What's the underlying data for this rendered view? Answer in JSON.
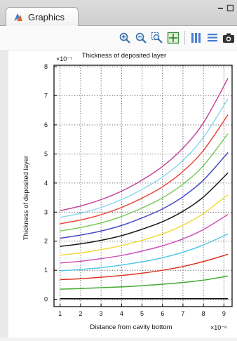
{
  "window": {
    "tab_label": "Graphics",
    "controls": [
      "minimize-icon",
      "maximize-icon"
    ]
  },
  "toolbar": {
    "buttons": [
      {
        "name": "zoom-in-icon"
      },
      {
        "name": "zoom-out-icon"
      },
      {
        "name": "zoom-box-icon"
      },
      {
        "name": "zoom-extents-icon"
      },
      {
        "name": "show-grid-icon"
      },
      {
        "name": "show-legend-icon"
      },
      {
        "name": "camera-icon"
      }
    ]
  },
  "chart_data": {
    "type": "line",
    "title": "Thickness of deposited layer",
    "xlabel": "Distance from cavity bottom",
    "ylabel": "Thickness of deposited layer",
    "x_multiplier": "×10⁻⁶",
    "y_multiplier": "×10⁻⁷",
    "xlim": [
      0.7,
      9.4
    ],
    "ylim": [
      -0.25,
      8.05
    ],
    "xticks": [
      1,
      2,
      3,
      4,
      5,
      6,
      7,
      8,
      9
    ],
    "yticks": [
      0,
      1,
      2,
      3,
      4,
      5,
      6,
      7,
      8
    ],
    "grid": true,
    "x": [
      1,
      2,
      3,
      4,
      5,
      6,
      7,
      8,
      9.2
    ],
    "series": [
      {
        "color": "#0a0a0a",
        "values": [
          0.02,
          0.02,
          0.02,
          0.02,
          0.02,
          0.02,
          0.02,
          0.02,
          0.02
        ]
      },
      {
        "color": "#44aa33",
        "values": [
          0.35,
          0.37,
          0.4,
          0.43,
          0.47,
          0.52,
          0.58,
          0.66,
          0.8
        ]
      },
      {
        "color": "#dd3322",
        "values": [
          0.68,
          0.71,
          0.76,
          0.82,
          0.9,
          1.0,
          1.13,
          1.3,
          1.55
        ]
      },
      {
        "color": "#55c8e8",
        "values": [
          0.98,
          1.03,
          1.09,
          1.18,
          1.29,
          1.43,
          1.62,
          1.87,
          2.25
        ]
      },
      {
        "color": "#cc55bb",
        "values": [
          1.25,
          1.31,
          1.4,
          1.51,
          1.66,
          1.84,
          2.08,
          2.4,
          2.92
        ]
      },
      {
        "color": "#f0dc3c",
        "values": [
          1.52,
          1.6,
          1.71,
          1.85,
          2.03,
          2.25,
          2.55,
          2.95,
          3.6
        ]
      },
      {
        "color": "#1a1a1a",
        "values": [
          1.82,
          1.91,
          2.03,
          2.19,
          2.41,
          2.67,
          3.03,
          3.52,
          4.35
        ]
      },
      {
        "color": "#4848c8",
        "values": [
          2.1,
          2.21,
          2.35,
          2.54,
          2.8,
          3.11,
          3.53,
          4.1,
          5.05
        ]
      },
      {
        "color": "#7acc5a",
        "values": [
          2.35,
          2.47,
          2.63,
          2.85,
          3.14,
          3.49,
          3.96,
          4.6,
          5.7
        ]
      },
      {
        "color": "#e84a3a",
        "values": [
          2.6,
          2.73,
          2.91,
          3.16,
          3.48,
          3.87,
          4.4,
          5.12,
          6.35
        ]
      },
      {
        "color": "#8fd8ee",
        "values": [
          2.82,
          2.96,
          3.16,
          3.43,
          3.78,
          4.21,
          4.78,
          5.57,
          6.9
        ]
      },
      {
        "color": "#c44a9a",
        "values": [
          3.05,
          3.21,
          3.43,
          3.72,
          4.1,
          4.57,
          5.2,
          6.07,
          7.6
        ]
      }
    ]
  }
}
